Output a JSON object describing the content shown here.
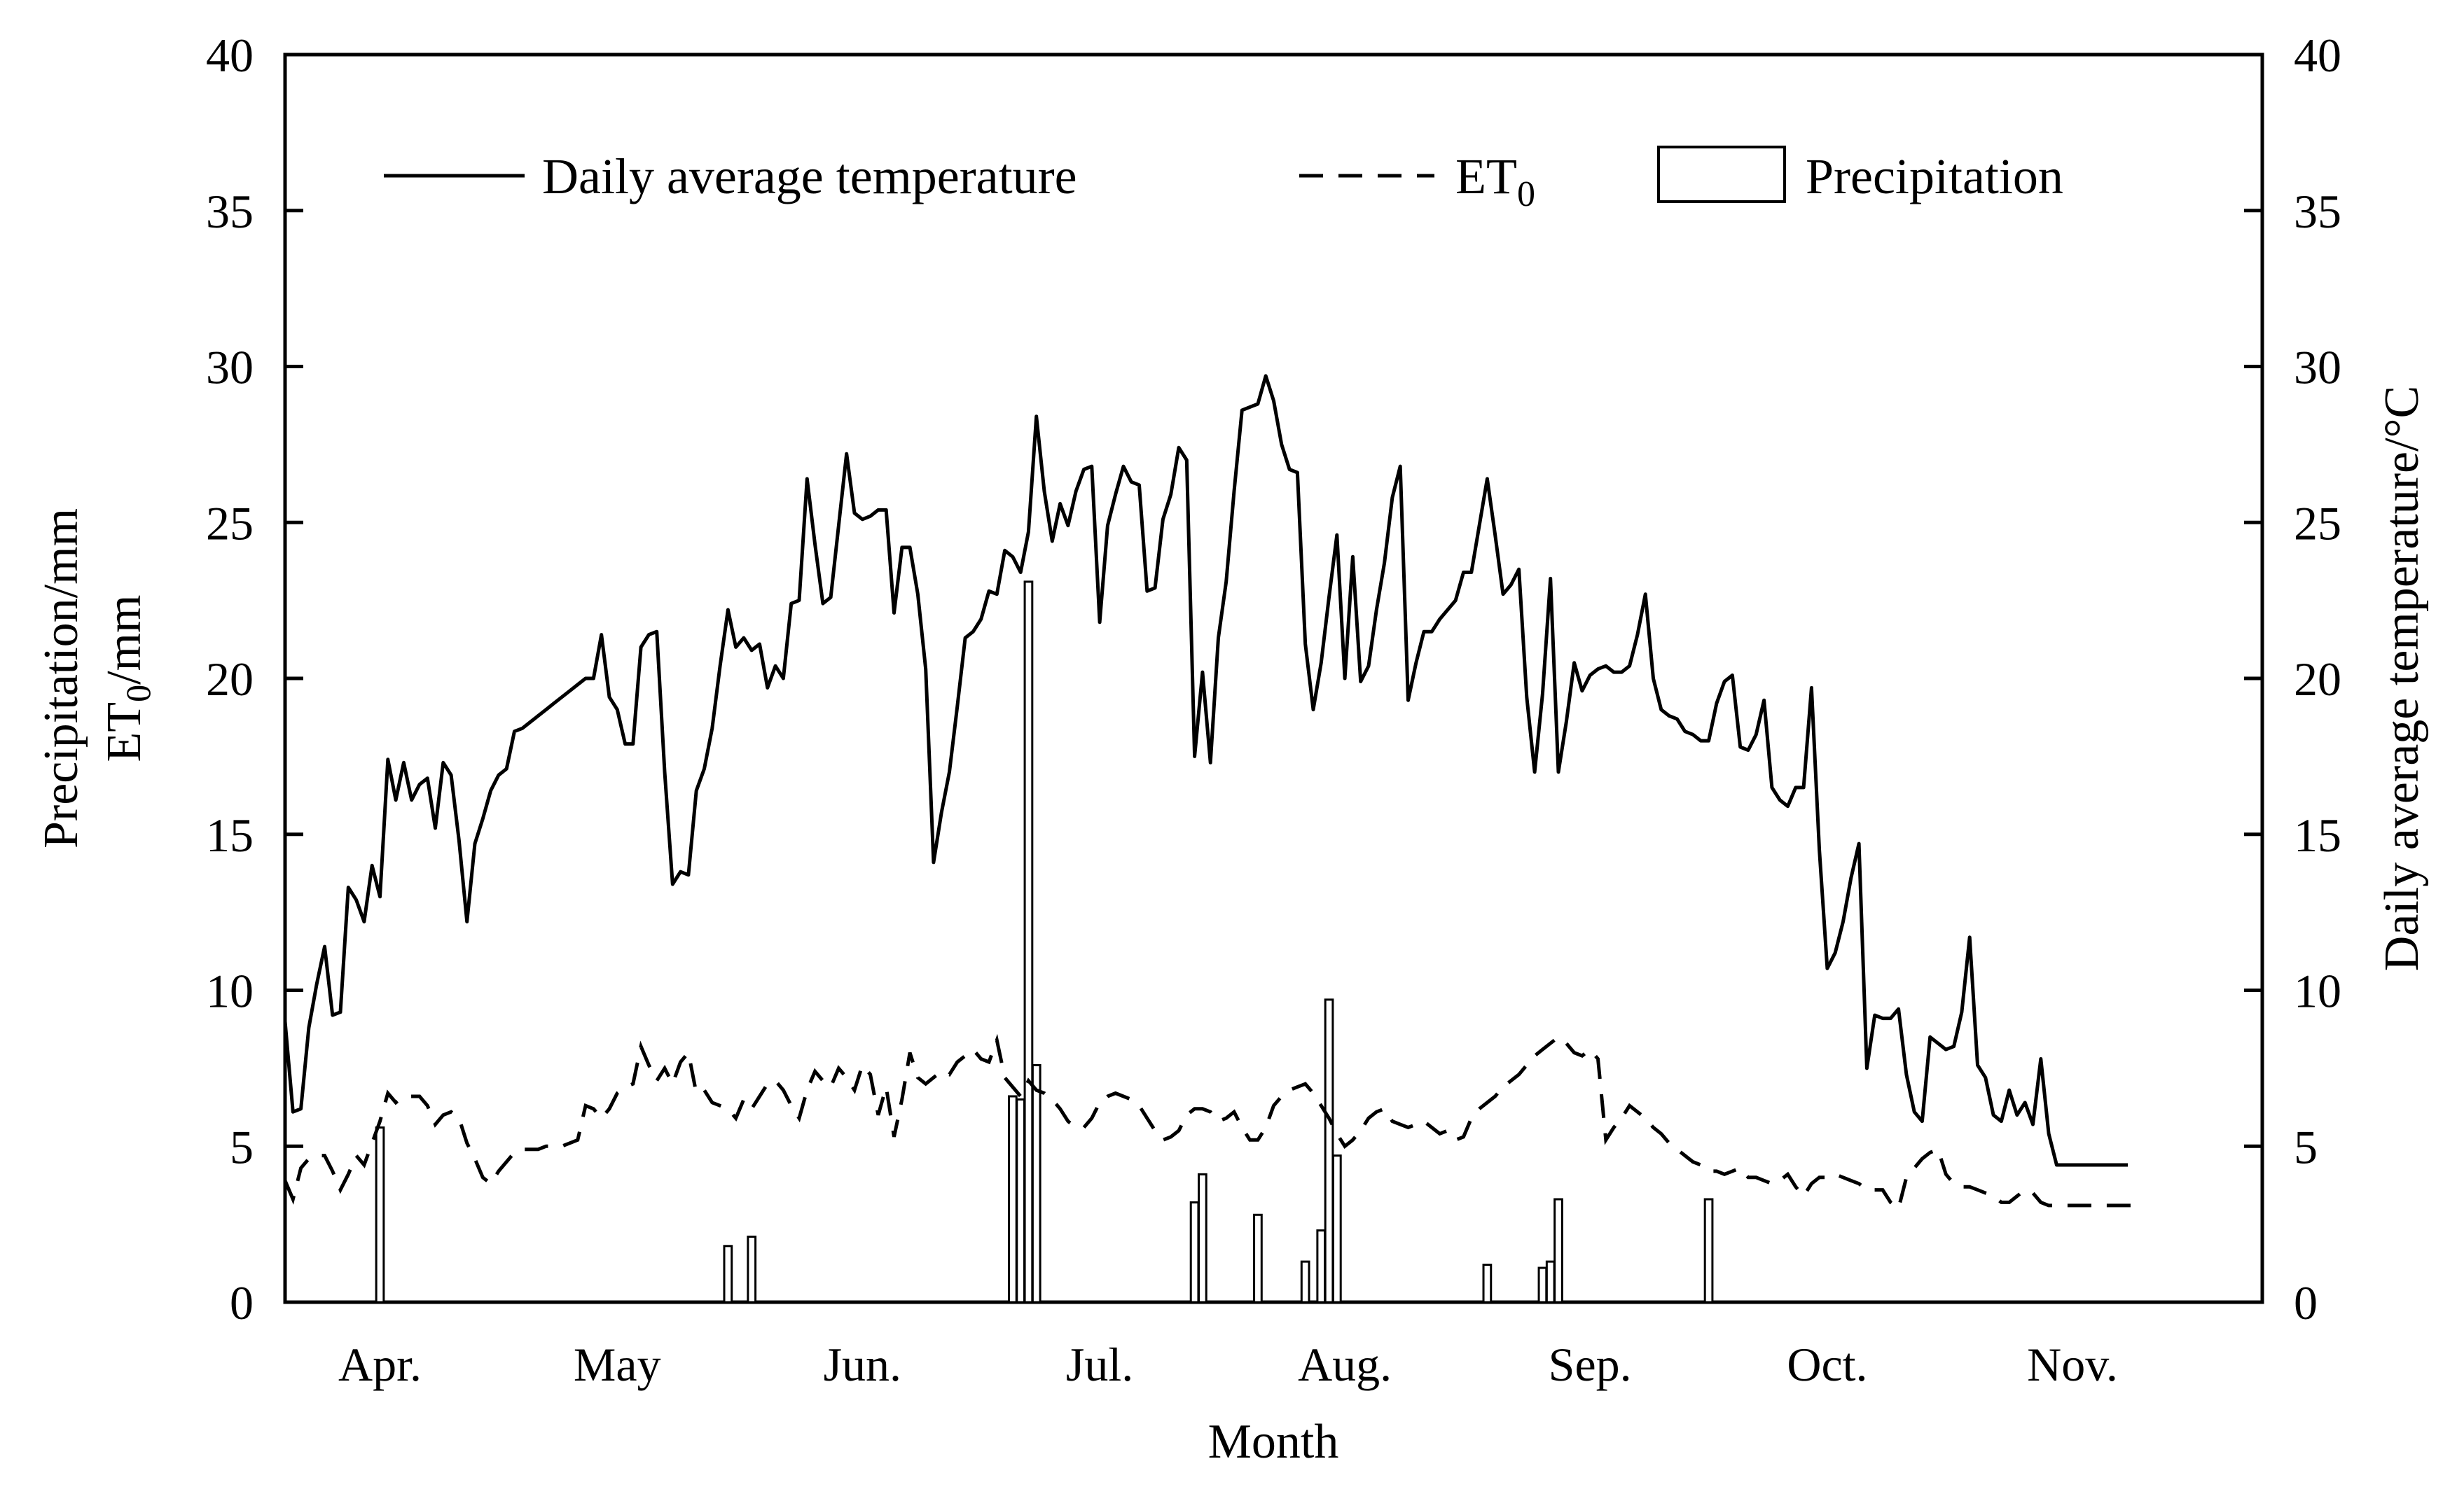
{
  "chart_data": {
    "type": "line",
    "title": "",
    "xlabel": "Month",
    "ylabel_left": [
      "Precipitation/mm",
      "ET0/mm"
    ],
    "ylabel_right": "Daily average temperature/°C",
    "months": [
      "Apr.",
      "May",
      "Jun.",
      "Jul.",
      "Aug.",
      "Sep.",
      "Oct.",
      "Nov."
    ],
    "xlim_day_of_year": [
      80,
      330
    ],
    "ylim_left": [
      0,
      40
    ],
    "ylim_right": [
      0,
      40
    ],
    "yticks_left": [
      "0",
      "5",
      "10",
      "15",
      "20",
      "25",
      "30",
      "35",
      "40"
    ],
    "yticks_right": [
      "0",
      "5",
      "10",
      "15",
      "20",
      "25",
      "30",
      "35",
      "40"
    ],
    "grid": false,
    "legend": {
      "placement": "top",
      "items": [
        {
          "label": "Daily average temperature",
          "style": "solid line"
        },
        {
          "label_main": "ET",
          "label_sub": "0",
          "style": "dashed line"
        },
        {
          "label": "Precipitation",
          "style": "open bar"
        }
      ]
    },
    "series": [
      {
        "name": "Daily average temperature",
        "axis": "right",
        "x_day_of_year": [
          80,
          81,
          82,
          83,
          84,
          85,
          86,
          87,
          88,
          89,
          90,
          91,
          92,
          93,
          94,
          95,
          96,
          97,
          98,
          99,
          100,
          101,
          102,
          103,
          104,
          105,
          106,
          107,
          108,
          109,
          110,
          111,
          112,
          113,
          114,
          115,
          116,
          117,
          118,
          119,
          120,
          121,
          122,
          123,
          124,
          125,
          126,
          127,
          128,
          129,
          130,
          131,
          132,
          133,
          134,
          135,
          136,
          137,
          138,
          139,
          140,
          141,
          142,
          143,
          144,
          145,
          146,
          147,
          148,
          149,
          150,
          151,
          152,
          153,
          154,
          155,
          156,
          157,
          158,
          159,
          160,
          161,
          162,
          163,
          164,
          165,
          166,
          167,
          168,
          169,
          170,
          171,
          172,
          173,
          174,
          175,
          176,
          177,
          178,
          179,
          180,
          181,
          182,
          183,
          184,
          185,
          186,
          187,
          188,
          189,
          190,
          191,
          192,
          193,
          194,
          195,
          196,
          197,
          198,
          199,
          200,
          201,
          202,
          203,
          204,
          205,
          206,
          207,
          208,
          209,
          210,
          211,
          212,
          213,
          214,
          215,
          216,
          217,
          218,
          219,
          220,
          221,
          222,
          223,
          224,
          225,
          226,
          227,
          228,
          229,
          230,
          231,
          232,
          233,
          234,
          235,
          236,
          237,
          238,
          239,
          240,
          241,
          242,
          243,
          244,
          245,
          246,
          247,
          248,
          249,
          250,
          251,
          252,
          253,
          254,
          255,
          256,
          257,
          258,
          259,
          260,
          261,
          262,
          263,
          264,
          265,
          266,
          267,
          268,
          269,
          270,
          271,
          272,
          273,
          274,
          275,
          276,
          277,
          278,
          279,
          280,
          281,
          282,
          283,
          284,
          285,
          286,
          287,
          288,
          289,
          290,
          291,
          292,
          293,
          294,
          295,
          296,
          297,
          298,
          299,
          300,
          301,
          302,
          303,
          304,
          305,
          306,
          307,
          308,
          309,
          310,
          311,
          312,
          313,
          314,
          315,
          316,
          317,
          318,
          319,
          320,
          321,
          322,
          323,
          324,
          325,
          326,
          327,
          328,
          329,
          330
        ],
        "values": [
          9.0,
          6.1,
          6.2,
          8.8,
          10.2,
          11.4,
          9.2,
          9.3,
          13.3,
          12.9,
          12.2,
          14.0,
          13.0,
          17.4,
          16.1,
          17.3,
          16.1,
          16.6,
          16.8,
          15.2,
          17.3,
          16.9,
          14.8,
          12.2,
          14.7,
          15.5,
          16.4,
          16.9,
          17.1,
          18.3,
          18.4,
          18.6,
          18.8,
          19.0,
          19.2,
          19.4,
          19.6,
          19.8,
          20.0,
          20.0,
          21.4,
          19.4,
          19.0,
          17.9,
          17.9,
          21.0,
          21.4,
          21.5,
          17.0,
          13.4,
          13.8,
          13.7,
          16.4,
          17.1,
          18.4,
          20.4,
          22.2,
          21.0,
          21.3,
          20.9,
          21.1,
          19.7,
          20.4,
          20.0,
          22.4,
          22.5,
          26.4,
          24.3,
          22.4,
          22.6,
          24.9,
          27.2,
          25.3,
          25.1,
          25.2,
          25.4,
          25.4,
          22.1,
          24.2,
          24.2,
          22.7,
          20.3,
          14.1,
          15.7,
          17.0,
          19.1,
          21.3,
          21.5,
          21.9,
          22.8,
          22.7,
          24.1,
          23.9,
          23.4,
          24.7,
          28.4,
          26.0,
          24.4,
          25.6,
          24.9,
          26.0,
          26.7,
          26.8,
          21.8,
          24.9,
          25.9,
          26.8,
          26.3,
          26.2,
          22.8,
          22.9,
          25.1,
          25.9,
          27.4,
          27.0,
          17.5,
          20.2,
          17.3,
          21.3,
          23.1,
          26.0,
          28.6,
          28.7,
          28.8,
          29.7,
          28.9,
          27.5,
          26.7,
          26.6,
          21.1,
          19.0,
          20.5,
          22.6,
          24.6,
          20.0,
          23.9,
          19.9,
          20.4,
          22.2,
          23.7,
          25.8,
          26.8,
          19.3,
          20.5,
          21.5,
          21.5,
          21.9,
          22.2,
          22.5,
          23.4,
          23.4,
          24.9,
          26.4,
          24.6,
          22.7,
          23.0,
          23.5,
          19.4,
          17.0,
          19.5,
          23.2,
          17.0,
          18.6,
          20.5,
          19.6,
          20.1,
          20.3,
          20.4,
          20.2,
          20.2,
          20.4,
          21.4,
          22.7,
          20.0,
          19.0,
          18.8,
          18.7,
          18.3,
          18.2,
          18.0,
          18.0,
          19.2,
          19.9,
          20.1,
          17.8,
          17.7,
          18.2,
          19.3,
          16.5,
          16.1,
          15.9,
          16.5,
          16.5,
          19.7,
          14.5,
          10.7,
          11.2,
          12.2,
          13.6,
          14.7,
          7.5,
          9.2,
          9.1,
          9.1,
          9.4,
          7.3,
          6.1,
          5.8,
          8.5,
          8.3,
          8.1,
          8.2,
          9.3,
          11.7,
          7.6,
          7.2,
          6.0,
          5.8,
          6.8,
          6.0,
          6.4,
          5.7,
          7.8,
          5.4,
          4.4,
          4.4,
          4.4,
          4.4,
          4.4,
          4.4,
          4.4,
          4.4,
          4.4,
          4.4
        ]
      },
      {
        "name": "ET0",
        "axis": "left",
        "x_day_of_year": [
          80,
          81,
          82,
          83,
          84,
          85,
          86,
          87,
          88,
          89,
          90,
          91,
          92,
          93,
          94,
          95,
          96,
          97,
          98,
          99,
          100,
          101,
          102,
          103,
          104,
          105,
          106,
          107,
          108,
          109,
          110,
          111,
          112,
          113,
          114,
          115,
          116,
          117,
          118,
          119,
          120,
          121,
          122,
          123,
          124,
          125,
          126,
          127,
          128,
          129,
          130,
          131,
          132,
          133,
          134,
          135,
          136,
          137,
          138,
          139,
          140,
          141,
          142,
          143,
          144,
          145,
          146,
          147,
          148,
          149,
          150,
          151,
          152,
          153,
          154,
          155,
          156,
          157,
          158,
          159,
          160,
          161,
          162,
          163,
          164,
          165,
          166,
          167,
          168,
          169,
          170,
          171,
          172,
          173,
          174,
          175,
          176,
          177,
          178,
          179,
          180,
          181,
          182,
          183,
          184,
          185,
          186,
          187,
          188,
          189,
          190,
          191,
          192,
          193,
          194,
          195,
          196,
          197,
          198,
          199,
          200,
          201,
          202,
          203,
          204,
          205,
          206,
          207,
          208,
          209,
          210,
          211,
          212,
          213,
          214,
          215,
          216,
          217,
          218,
          219,
          220,
          221,
          222,
          223,
          224,
          225,
          226,
          227,
          228,
          229,
          230,
          231,
          232,
          233,
          234,
          235,
          236,
          237,
          238,
          239,
          240,
          241,
          242,
          243,
          244,
          245,
          246,
          247,
          248,
          249,
          250,
          251,
          252,
          253,
          254,
          255,
          256,
          257,
          258,
          259,
          260,
          261,
          262,
          263,
          264,
          265,
          266,
          267,
          268,
          269,
          270,
          271,
          272,
          273,
          274,
          275,
          276,
          277,
          278,
          279,
          280,
          281,
          282,
          283,
          284,
          285,
          286,
          287,
          288,
          289,
          290,
          291,
          292,
          293,
          294,
          295,
          296,
          297,
          298,
          299,
          300,
          301,
          302,
          303,
          304,
          305,
          306,
          307,
          308,
          309,
          310,
          311,
          312,
          313,
          314,
          315,
          316,
          317,
          318,
          319,
          320,
          321,
          322,
          323,
          324,
          325,
          326,
          327,
          328,
          329,
          330
        ],
        "values": [
          3.9,
          3.3,
          4.3,
          4.6,
          4.7,
          4.7,
          4.2,
          3.6,
          4.1,
          4.7,
          4.4,
          5.1,
          5.8,
          6.7,
          6.4,
          6.6,
          6.6,
          6.6,
          6.3,
          5.7,
          6.0,
          6.1,
          5.9,
          5.1,
          4.6,
          4.0,
          3.8,
          4.2,
          4.5,
          4.8,
          4.9,
          4.9,
          4.9,
          5.0,
          5.0,
          5.0,
          5.1,
          5.2,
          6.3,
          6.2,
          5.9,
          6.2,
          6.7,
          6.9,
          7.0,
          8.2,
          7.6,
          7.1,
          7.5,
          7.0,
          7.7,
          8.0,
          6.7,
          6.8,
          6.4,
          6.3,
          6.2,
          5.9,
          6.5,
          6.2,
          6.6,
          7.0,
          7.1,
          6.8,
          6.3,
          5.9,
          6.8,
          7.4,
          7.1,
          6.9,
          7.5,
          7.2,
          6.8,
          7.6,
          7.3,
          6.0,
          6.9,
          5.3,
          6.5,
          8.0,
          7.2,
          7.0,
          7.2,
          7.4,
          7.3,
          7.7,
          7.9,
          8.1,
          7.8,
          7.7,
          8.4,
          7.2,
          6.9,
          6.6,
          7.1,
          6.8,
          6.7,
          6.5,
          6.2,
          5.8,
          5.6,
          5.6,
          5.9,
          6.4,
          6.6,
          6.7,
          6.6,
          6.5,
          6.3,
          5.9,
          5.5,
          5.2,
          5.3,
          5.5,
          6.0,
          6.2,
          6.2,
          6.1,
          5.8,
          5.9,
          6.1,
          5.6,
          5.2,
          5.2,
          5.6,
          6.3,
          6.6,
          6.8,
          6.9,
          7.0,
          6.7,
          6.3,
          5.9,
          5.4,
          5.0,
          5.2,
          5.5,
          5.9,
          6.1,
          6.2,
          5.8,
          5.7,
          5.6,
          5.7,
          5.8,
          5.6,
          5.4,
          5.5,
          5.2,
          5.3,
          5.9,
          6.2,
          6.4,
          6.6,
          6.9,
          7.1,
          7.3,
          7.6,
          7.9,
          8.1,
          8.3,
          8.5,
          8.3,
          8.0,
          7.9,
          8.1,
          7.8,
          5.2,
          5.6,
          5.9,
          6.3,
          6.1,
          5.9,
          5.6,
          5.4,
          5.1,
          4.9,
          4.7,
          4.5,
          4.4,
          4.2,
          4.2,
          4.1,
          4.2,
          4.3,
          4.0,
          4.0,
          3.9,
          3.8,
          3.9,
          4.1,
          3.7,
          3.4,
          3.8,
          4.0,
          4.0,
          4.1,
          4.0,
          3.9,
          3.8,
          3.6,
          3.6,
          3.6,
          3.2,
          3.0,
          4.0,
          4.3,
          4.6,
          4.8,
          4.9,
          4.1,
          3.8,
          3.7,
          3.7,
          3.6,
          3.5,
          3.4,
          3.2,
          3.2,
          3.4,
          3.6,
          3.5,
          3.2,
          3.1,
          3.1,
          3.1,
          3.1,
          3.1,
          3.1,
          3.1,
          3.1,
          3.1,
          3.1,
          3.1,
          3.1,
          3.1
        ]
      },
      {
        "name": "Precipitation",
        "axis": "left",
        "type": "bar",
        "x_day_of_year": [
          92,
          136,
          139,
          172,
          173,
          174,
          175,
          195,
          196,
          203,
          209,
          211,
          212,
          213,
          232,
          239,
          240,
          241,
          260
        ],
        "values": [
          5.6,
          1.8,
          2.1,
          6.6,
          6.5,
          23.1,
          7.6,
          3.2,
          4.1,
          2.8,
          1.3,
          2.3,
          9.7,
          4.7,
          1.2,
          1.1,
          1.3,
          3.3,
          3.3
        ]
      }
    ],
    "month_center_day_of_year": [
      92,
      122,
      153,
      183,
      214,
      245,
      275,
      306
    ]
  }
}
